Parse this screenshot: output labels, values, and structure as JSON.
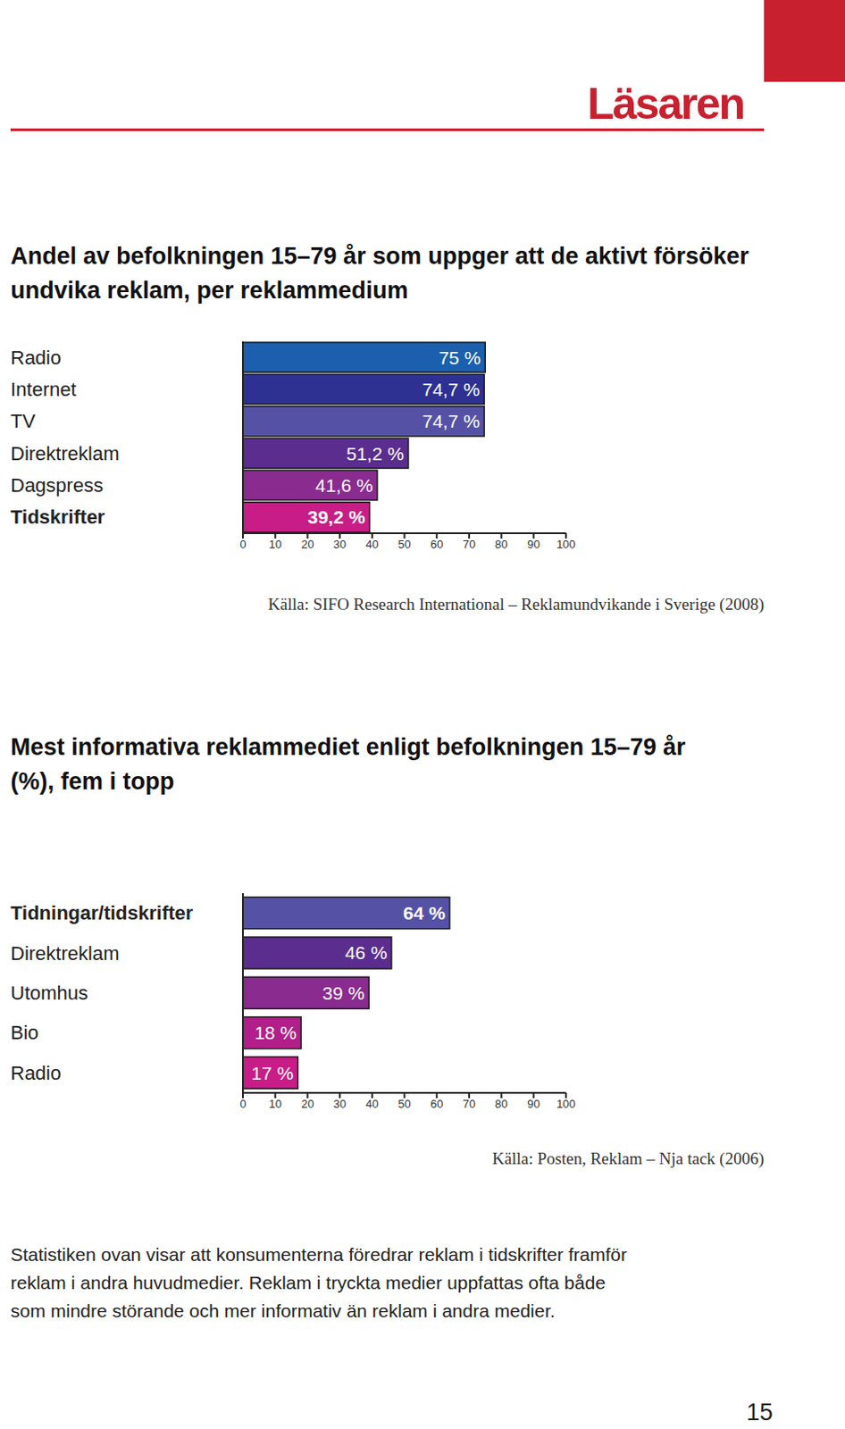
{
  "header": "Läsaren",
  "chart_data": [
    {
      "type": "bar",
      "title": "Andel av befolkningen 15–79 år som uppger att de aktivt försöker undvika reklam, per reklammedium",
      "orientation": "horizontal",
      "categories": [
        "Radio",
        "Internet",
        "TV",
        "Direktreklam",
        "Dagspress",
        "Tidskrifter"
      ],
      "values": [
        75,
        74.7,
        74.7,
        51.2,
        41.6,
        39.2
      ],
      "value_labels": [
        "75 %",
        "74,7 %",
        "74,7 %",
        "51,2 %",
        "41,6 %",
        "39,2 %"
      ],
      "colors": [
        "#1b5fae",
        "#2e3192",
        "#5552a6",
        "#5a2d8e",
        "#8a2b8f",
        "#c81d87"
      ],
      "data_labels": true,
      "xlim": [
        0,
        100
      ],
      "xticks": [
        0,
        10,
        20,
        30,
        40,
        50,
        60,
        70,
        80,
        90,
        100
      ],
      "source": "Källa: SIFO Research International – Reklamundvikande i Sverige (2008)"
    },
    {
      "type": "bar",
      "title": "Mest informativa reklammediet enligt befolkningen 15–79 år (%), fem i topp",
      "orientation": "horizontal",
      "categories": [
        "Tidningar/tidskrifter",
        "Direktreklam",
        "Utomhus",
        "Bio",
        "Radio"
      ],
      "values": [
        64,
        46,
        39,
        18,
        17
      ],
      "value_labels": [
        "64 %",
        "46 %",
        "39 %",
        "18 %",
        "17 %"
      ],
      "colors": [
        "#5552a6",
        "#5a2d8e",
        "#8a2b8f",
        "#b21f8a",
        "#c81d87"
      ],
      "data_labels": true,
      "xlim": [
        0,
        100
      ],
      "xticks": [
        0,
        10,
        20,
        30,
        40,
        50,
        60,
        70,
        80,
        90,
        100
      ],
      "source": "Källa: Posten, Reklam – Nja tack (2006)"
    }
  ],
  "body": [
    "Statistiken ovan visar att konsumenterna föredrar reklam i tidskrifter framför",
    "reklam i andra huvudmedier. Reklam i tryckta medier uppfattas ofta både",
    "som mindre störande och mer informativ än reklam i andra medier."
  ],
  "page_number": 15
}
